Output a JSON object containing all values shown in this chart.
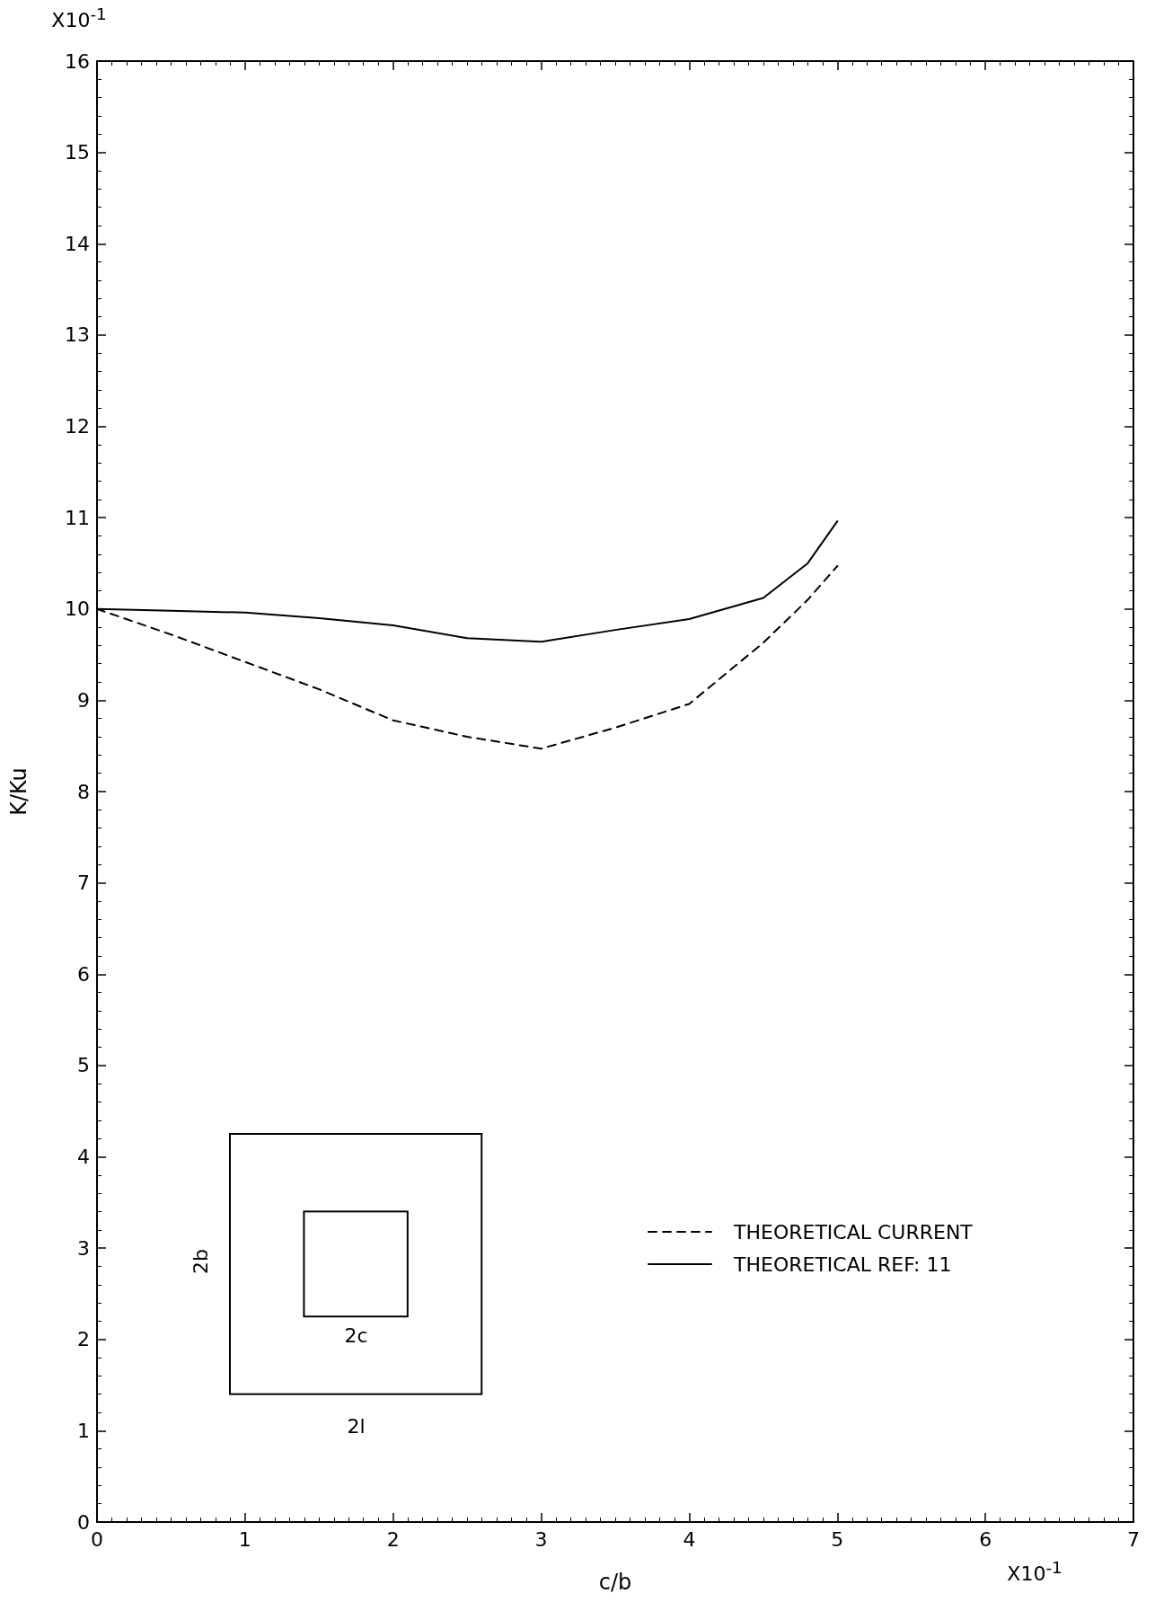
{
  "chart_data": {
    "type": "line",
    "xlabel": "c/b",
    "ylabel": "K/Ku",
    "xlim": [
      0,
      7
    ],
    "xticks": [
      0,
      1,
      2,
      3,
      4,
      5,
      6,
      7
    ],
    "ylim": [
      0,
      16
    ],
    "yticks": [
      0,
      1,
      2,
      3,
      4,
      5,
      6,
      7,
      8,
      9,
      10,
      11,
      12,
      13,
      14,
      15,
      16
    ],
    "x": [
      0,
      0.5,
      1,
      1.5,
      2,
      2.5,
      3,
      3.5,
      4,
      4.5,
      4.8,
      5
    ],
    "series": [
      {
        "name": "THEORETICAL CURRENT",
        "color": "#000000",
        "line_style": "dashed",
        "values": [
          10,
          9.72,
          9.42,
          9.12,
          8.78,
          8.6,
          8.47,
          8.7,
          8.96,
          9.63,
          10.1,
          10.47
        ]
      },
      {
        "name": "THEORETICAL REF: 11",
        "color": "#000000",
        "line_style": "solid",
        "values": [
          10,
          9.98,
          9.96,
          9.9,
          9.82,
          9.68,
          9.64,
          9.77,
          9.89,
          10.12,
          10.5,
          10.96
        ]
      }
    ],
    "annotations": [
      "X10$^{-1}$",
      "X10$^{-1}$",
      "2b",
      "2c",
      "2l"
    ],
    "marker": "none",
    "grid": false,
    "legend": "bottom right"
  }
}
